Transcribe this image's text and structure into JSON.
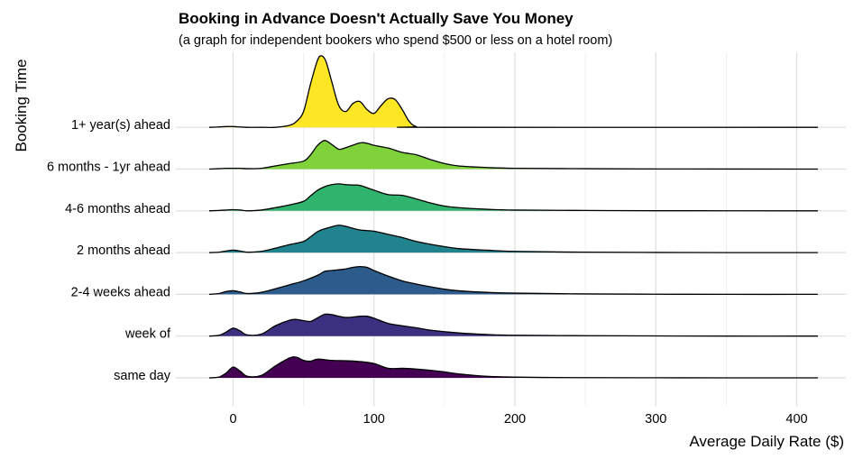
{
  "chart_data": {
    "type": "ridgeline",
    "title": "Booking in Advance Doesn't Actually Save You Money",
    "subtitle": "(a graph for independent bookers who spend $500 or less on a hotel room)",
    "xlabel": "Average Daily Rate ($)",
    "ylabel": "Booking Time",
    "xlim": [
      -20,
      415
    ],
    "xticks": [
      0,
      100,
      200,
      300,
      400
    ],
    "grid": true,
    "series": [
      {
        "name": "same day",
        "color": "#440154",
        "x": [
          -17,
          -10,
          -5,
          0,
          5,
          10,
          20,
          30,
          40,
          45,
          50,
          55,
          60,
          70,
          80,
          90,
          100,
          110,
          120,
          130,
          140,
          150,
          160,
          180,
          200,
          220,
          250,
          300,
          350,
          415
        ],
        "density": [
          0.0,
          0.02,
          0.12,
          0.27,
          0.17,
          0.04,
          0.06,
          0.3,
          0.5,
          0.52,
          0.44,
          0.42,
          0.47,
          0.44,
          0.43,
          0.41,
          0.36,
          0.24,
          0.24,
          0.22,
          0.19,
          0.15,
          0.1,
          0.04,
          0.02,
          0.01,
          0.005,
          0.002,
          0.0,
          0.0
        ]
      },
      {
        "name": "week of",
        "color": "#3b2f7f",
        "x": [
          -17,
          -10,
          -5,
          0,
          5,
          10,
          20,
          30,
          40,
          45,
          50,
          55,
          60,
          65,
          70,
          80,
          90,
          95,
          100,
          110,
          120,
          130,
          140,
          160,
          180,
          200,
          250,
          300,
          350,
          415
        ],
        "density": [
          0.0,
          0.02,
          0.1,
          0.2,
          0.13,
          0.03,
          0.05,
          0.26,
          0.4,
          0.42,
          0.39,
          0.37,
          0.46,
          0.55,
          0.54,
          0.47,
          0.5,
          0.5,
          0.45,
          0.32,
          0.26,
          0.21,
          0.15,
          0.08,
          0.04,
          0.02,
          0.01,
          0.004,
          0.0,
          0.0
        ]
      },
      {
        "name": "2-4 weeks ahead",
        "color": "#2c5b8c",
        "x": [
          -17,
          -10,
          -5,
          0,
          5,
          10,
          20,
          30,
          40,
          50,
          60,
          65,
          70,
          80,
          85,
          90,
          95,
          100,
          110,
          120,
          130,
          140,
          150,
          160,
          180,
          200,
          250,
          300,
          350,
          415
        ],
        "density": [
          0.0,
          0.02,
          0.07,
          0.09,
          0.06,
          0.02,
          0.05,
          0.14,
          0.24,
          0.34,
          0.48,
          0.58,
          0.6,
          0.64,
          0.68,
          0.7,
          0.68,
          0.6,
          0.46,
          0.34,
          0.26,
          0.19,
          0.13,
          0.09,
          0.05,
          0.03,
          0.01,
          0.004,
          0.0,
          0.0
        ]
      },
      {
        "name": "2 months ahead",
        "color": "#21838d",
        "x": [
          -17,
          -10,
          -5,
          0,
          5,
          10,
          20,
          30,
          40,
          50,
          55,
          60,
          65,
          70,
          75,
          80,
          90,
          100,
          110,
          120,
          130,
          140,
          150,
          160,
          180,
          200,
          250,
          300,
          350,
          415
        ],
        "density": [
          0.0,
          0.01,
          0.04,
          0.06,
          0.04,
          0.01,
          0.03,
          0.11,
          0.2,
          0.28,
          0.4,
          0.53,
          0.6,
          0.65,
          0.69,
          0.66,
          0.57,
          0.54,
          0.46,
          0.38,
          0.28,
          0.21,
          0.15,
          0.1,
          0.06,
          0.03,
          0.01,
          0.004,
          0.0,
          0.0
        ]
      },
      {
        "name": "4-6 months ahead",
        "color": "#2fb36d",
        "x": [
          -17,
          -10,
          -5,
          0,
          5,
          10,
          20,
          30,
          40,
          50,
          55,
          60,
          65,
          70,
          75,
          80,
          85,
          90,
          100,
          110,
          120,
          130,
          140,
          150,
          160,
          180,
          200,
          250,
          300,
          415
        ],
        "density": [
          0.0,
          0.01,
          0.02,
          0.03,
          0.02,
          0.0,
          0.02,
          0.08,
          0.15,
          0.24,
          0.38,
          0.52,
          0.61,
          0.66,
          0.68,
          0.66,
          0.65,
          0.64,
          0.52,
          0.41,
          0.39,
          0.3,
          0.2,
          0.12,
          0.08,
          0.04,
          0.02,
          0.01,
          0.003,
          0.0
        ]
      },
      {
        "name": "6 months - 1yr ahead",
        "color": "#7fd23a",
        "x": [
          -17,
          -10,
          -5,
          0,
          5,
          10,
          20,
          30,
          40,
          50,
          55,
          60,
          65,
          70,
          75,
          80,
          90,
          95,
          100,
          110,
          120,
          130,
          140,
          150,
          160,
          180,
          200,
          250,
          300,
          415
        ],
        "density": [
          0.0,
          0.01,
          0.02,
          0.02,
          0.02,
          0.01,
          0.02,
          0.08,
          0.14,
          0.2,
          0.36,
          0.6,
          0.72,
          0.62,
          0.5,
          0.54,
          0.66,
          0.65,
          0.6,
          0.53,
          0.42,
          0.36,
          0.24,
          0.14,
          0.08,
          0.04,
          0.02,
          0.01,
          0.003,
          0.0
        ]
      },
      {
        "name": "1+ year(s) ahead",
        "color": "#fde725",
        "x": [
          -17,
          -10,
          -5,
          0,
          5,
          10,
          20,
          30,
          40,
          45,
          50,
          55,
          60,
          63,
          66,
          70,
          75,
          80,
          85,
          90,
          95,
          100,
          105,
          110,
          115,
          120,
          125,
          130,
          140,
          415
        ],
        "density": [
          0.0,
          0.01,
          0.02,
          0.02,
          0.01,
          0.0,
          0.0,
          0.0,
          0.05,
          0.15,
          0.4,
          1.1,
          1.7,
          1.8,
          1.65,
          1.15,
          0.55,
          0.4,
          0.6,
          0.65,
          0.45,
          0.35,
          0.55,
          0.72,
          0.7,
          0.45,
          0.15,
          0.02,
          0.0,
          0.0
        ]
      }
    ]
  }
}
